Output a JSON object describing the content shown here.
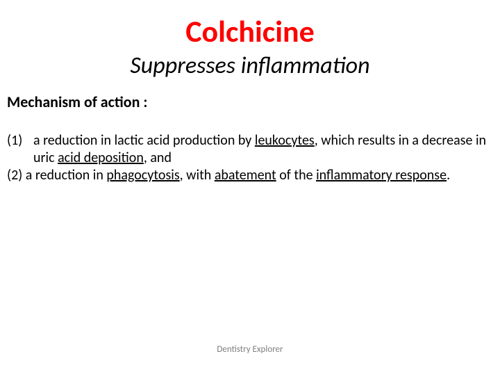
{
  "title": {
    "text": "Colchicine",
    "color": "#ff0000",
    "fontsize": 44
  },
  "subtitle": {
    "text": "Suppresses inflammation",
    "color": "#000000",
    "fontsize": 34
  },
  "section_heading": {
    "text": "Mechanism of action :",
    "color": "#000000",
    "fontsize": 22
  },
  "body": {
    "fontsize": 20,
    "color": "#000000",
    "item1": {
      "num": "(1)",
      "p1": "a reduction in lactic acid production by ",
      "u1": "leukocytes",
      "p2": ", which results in a decrease in uric ",
      "u2": "acid deposition",
      "p3": ", and"
    },
    "item2": {
      "num": "(2)",
      "p1": " a reduction in ",
      "u1": "phagocytosis",
      "p2": ", with ",
      "u2": "abatement",
      "p3": " of the ",
      "u3": "inflammatory response",
      "p4": "."
    }
  },
  "footer": {
    "text": "Dentistry Explorer",
    "color": "#7f7f7f",
    "fontsize": 13
  },
  "background_color": "#ffffff"
}
